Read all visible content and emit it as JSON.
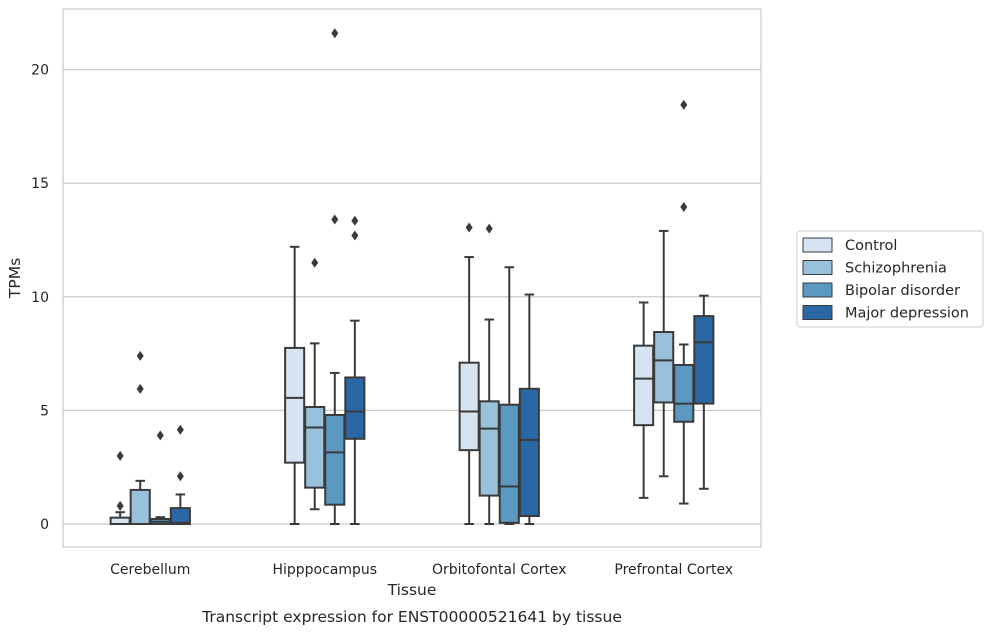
{
  "chart_data": {
    "type": "box",
    "title": "",
    "caption": "Transcript expression for ENST00000521641 by tissue",
    "xlabel": "Tissue",
    "ylabel": "TPMs",
    "ylim": [
      -1.05,
      22.6
    ],
    "yticks": [
      0,
      5,
      10,
      15,
      20
    ],
    "grid": "horizontal",
    "legend_position": "right",
    "categories": [
      "Cerebellum",
      "Hipppocampus",
      "Orbitofontal Cortex",
      "Prefrontal Cortex"
    ],
    "series": [
      {
        "name": "Control",
        "color": "#d6e3f0",
        "boxes": [
          {
            "whislo": 0,
            "q1": 0,
            "med": 0,
            "q3": 0.28,
            "whishi": 0.52,
            "fliers": [
              0.8,
              3.0
            ]
          },
          {
            "whislo": 0,
            "q1": 2.7,
            "med": 5.55,
            "q3": 7.75,
            "whishi": 12.2,
            "fliers": []
          },
          {
            "whislo": 0,
            "q1": 3.25,
            "med": 4.95,
            "q3": 7.1,
            "whishi": 11.75,
            "fliers": [
              13.05
            ]
          },
          {
            "whislo": 1.15,
            "q1": 4.35,
            "med": 6.4,
            "q3": 7.85,
            "whishi": 9.75,
            "fliers": []
          }
        ]
      },
      {
        "name": "Schizophrenia",
        "color": "#99c1db",
        "boxes": [
          {
            "whislo": 0,
            "q1": 0,
            "med": 0,
            "q3": 1.5,
            "whishi": 1.9,
            "fliers": [
              5.95,
              7.4
            ]
          },
          {
            "whislo": 0.65,
            "q1": 1.6,
            "med": 4.25,
            "q3": 5.15,
            "whishi": 7.95,
            "fliers": [
              11.5
            ]
          },
          {
            "whislo": 0,
            "q1": 1.25,
            "med": 4.2,
            "q3": 5.4,
            "whishi": 9.0,
            "fliers": [
              13.0
            ]
          },
          {
            "whislo": 2.1,
            "q1": 5.35,
            "med": 7.2,
            "q3": 8.45,
            "whishi": 12.9,
            "fliers": []
          }
        ]
      },
      {
        "name": "Bipolar disorder",
        "color": "#5b98c2",
        "boxes": [
          {
            "whislo": 0,
            "q1": 0,
            "med": 0.1,
            "q3": 0.22,
            "whishi": 0.3,
            "fliers": [
              3.9
            ]
          },
          {
            "whislo": 0,
            "q1": 0.85,
            "med": 3.15,
            "q3": 4.8,
            "whishi": 6.65,
            "fliers": [
              13.4,
              21.6
            ]
          },
          {
            "whislo": 0,
            "q1": 0.05,
            "med": 1.65,
            "q3": 5.25,
            "whishi": 11.3,
            "fliers": []
          },
          {
            "whislo": 0.9,
            "q1": 4.5,
            "med": 5.3,
            "q3": 7.0,
            "whishi": 7.9,
            "fliers": [
              13.95,
              18.45
            ]
          }
        ]
      },
      {
        "name": "Major depression",
        "color": "#2b66a5",
        "boxes": [
          {
            "whislo": 0,
            "q1": 0,
            "med": 0.05,
            "q3": 0.7,
            "whishi": 1.3,
            "fliers": [
              2.1,
              4.15
            ]
          },
          {
            "whislo": 0,
            "q1": 3.75,
            "med": 4.95,
            "q3": 6.45,
            "whishi": 8.95,
            "fliers": [
              12.7,
              13.35
            ]
          },
          {
            "whislo": 0,
            "q1": 0.35,
            "med": 3.7,
            "q3": 5.95,
            "whishi": 10.1,
            "fliers": []
          },
          {
            "whislo": 1.55,
            "q1": 5.3,
            "med": 8.0,
            "q3": 9.15,
            "whishi": 10.05,
            "fliers": []
          }
        ]
      }
    ]
  }
}
